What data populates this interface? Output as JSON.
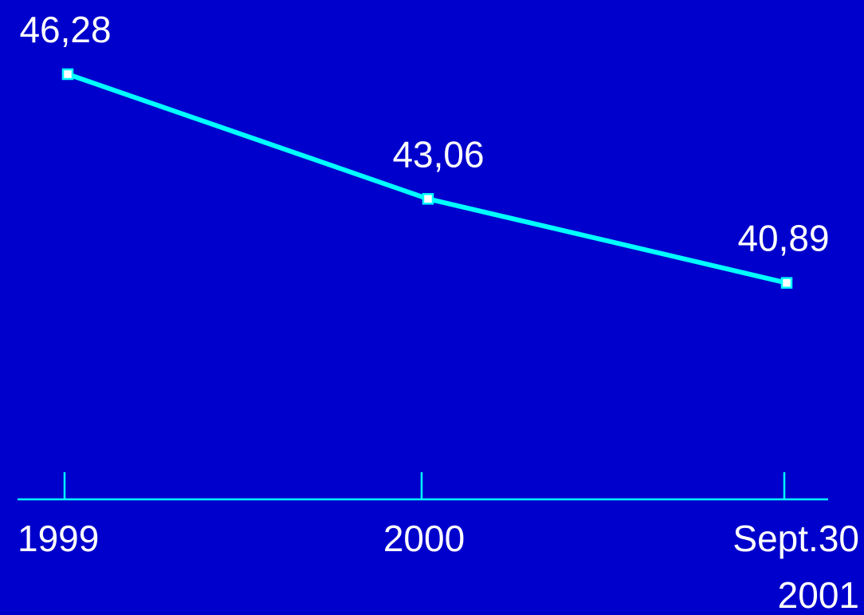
{
  "chart_data": {
    "type": "line",
    "categories": [
      [
        "1999"
      ],
      [
        "2000"
      ],
      [
        "Sept.30",
        "2001"
      ]
    ],
    "series": [
      {
        "values": [
          46.28,
          43.06,
          40.89
        ],
        "data_labels": [
          "46,28",
          "43,06",
          "40,89"
        ]
      }
    ],
    "ylim": [
      35.3,
      46.28
    ],
    "grid": false,
    "legend": "none"
  },
  "colors": {
    "background": "#0000cc",
    "line": "#00ffff",
    "axis": "#00ffff",
    "marker_fill": "#ffffff",
    "marker_stroke": "#00ffff",
    "text": "#ffffff"
  }
}
